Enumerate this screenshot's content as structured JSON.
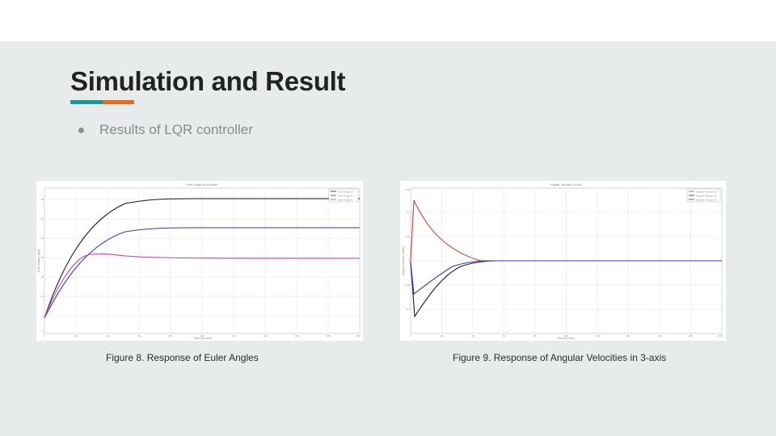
{
  "slide": {
    "title": "Simulation and Result",
    "accent_colors": [
      "#26918f",
      "#e06a2c"
    ],
    "bullet": "Results of LQR controller"
  },
  "figures": [
    {
      "caption": "Figure 8. Response of Euler Angles",
      "title": "Euler Angles of controller",
      "xlabel": "Time (second)",
      "ylabel": "Euler Angles (deg)",
      "legend": [
        "Euler Angle Φ",
        "Euler Angle θ",
        "Euler Angle ψ"
      ],
      "colors": [
        "#1a1a1a",
        "#3a3aa0",
        "#c040c0"
      ],
      "xticks": [
        "0",
        "20",
        "40",
        "60",
        "80",
        "100",
        "120",
        "140",
        "160",
        "180",
        "200"
      ],
      "yticks": [
        "35",
        "30",
        "25",
        "20",
        "15",
        "10",
        "5",
        "0"
      ]
    },
    {
      "caption": "Figure 9. Response of Angular Velocities in 3-axis",
      "title": "Angular Velocity in 3-axis",
      "xlabel": "Time (second)",
      "ylabel": "Angular Velocity (rad/s)",
      "legend": [
        "Angular Velocity W",
        "Angular Velocity W",
        "Angular Velocity W"
      ],
      "colors": [
        "#c04030",
        "#1a1a2a",
        "#3a3aa0"
      ],
      "xticks": [
        "0",
        "20",
        "40",
        "60",
        "80",
        "100",
        "120",
        "140",
        "160",
        "180",
        "200"
      ],
      "yticks": [
        "0.15",
        "0.1",
        "0.05",
        "0",
        "-0.05",
        "-0.1"
      ]
    }
  ]
}
